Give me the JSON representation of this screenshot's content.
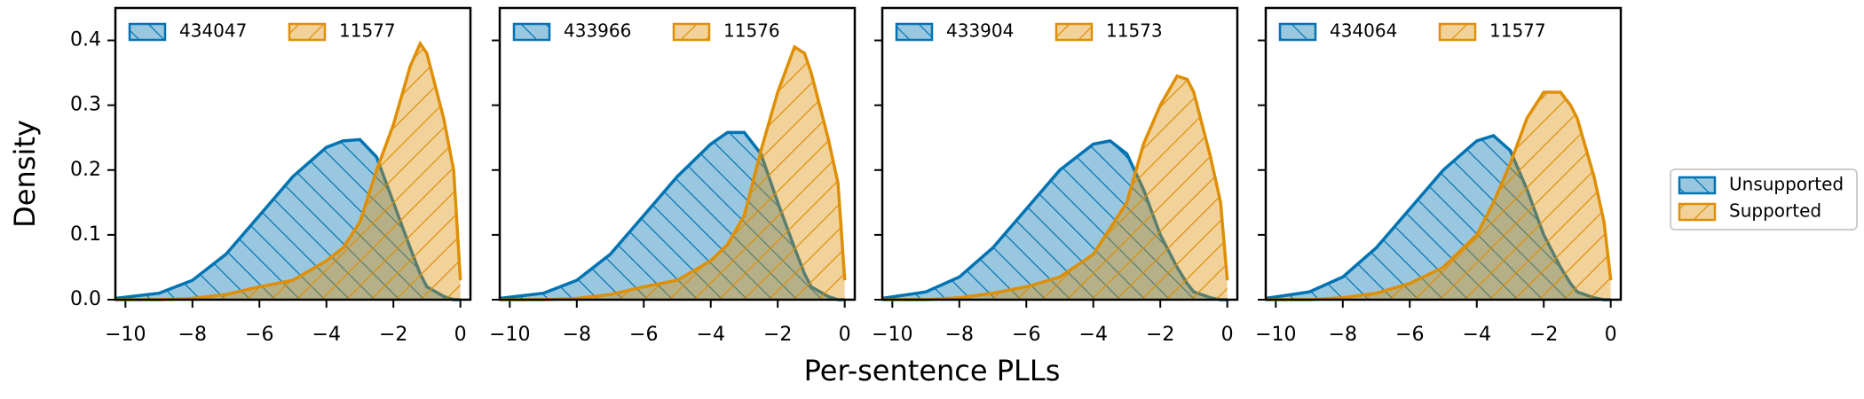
{
  "figure": {
    "xlabel": "Per-sentence PLLs",
    "ylabel": "Density",
    "ylim": [
      0,
      0.45
    ],
    "yticks": [
      {
        "value": 0,
        "label": "0.0"
      },
      0.1,
      0.2,
      0.3,
      0.4
    ],
    "legend": [
      {
        "name": "Unsupported",
        "color": "#0173b2"
      },
      {
        "name": "Supported",
        "color": "#de8f05"
      }
    ]
  },
  "chart_data": [
    {
      "type": "area",
      "xlim": [
        -10.3,
        0.3
      ],
      "xticks": [
        {
          "value": -10,
          "label": "−10"
        },
        {
          "value": -8,
          "label": "−8"
        },
        {
          "value": -6,
          "label": "−6"
        },
        {
          "value": -4,
          "label": "−4"
        },
        {
          "value": -2,
          "label": "−2"
        },
        0
      ],
      "x": [
        -10.3,
        -9,
        -8,
        -7,
        -6,
        -5,
        -4,
        -3.5,
        -3,
        -2.5,
        -2,
        -1.5,
        -1.2,
        -1,
        -0.5,
        -0.2,
        0
      ],
      "series": [
        {
          "name": "434047",
          "color": "#0173b2",
          "values": [
            0.002,
            0.01,
            0.03,
            0.07,
            0.13,
            0.19,
            0.235,
            0.245,
            0.247,
            0.22,
            0.15,
            0.08,
            0.04,
            0.02,
            0.005,
            0.0,
            0.0
          ]
        },
        {
          "name": "11577",
          "color": "#de8f05",
          "values": [
            0.0,
            0.0,
            0.002,
            0.008,
            0.02,
            0.03,
            0.06,
            0.08,
            0.12,
            0.2,
            0.27,
            0.36,
            0.395,
            0.38,
            0.28,
            0.2,
            0.03
          ]
        }
      ]
    },
    {
      "type": "area",
      "xlim": [
        -10.3,
        0.3
      ],
      "xticks": [
        {
          "value": -10,
          "label": "−10"
        },
        {
          "value": -8,
          "label": "−8"
        },
        {
          "value": -6,
          "label": "−6"
        },
        {
          "value": -4,
          "label": "−4"
        },
        {
          "value": -2,
          "label": "−2"
        },
        0
      ],
      "x": [
        -10.3,
        -9,
        -8,
        -7,
        -6,
        -5,
        -4,
        -3.5,
        -3,
        -2.5,
        -2,
        -1.5,
        -1.2,
        -1,
        -0.5,
        -0.2,
        0
      ],
      "series": [
        {
          "name": "433966",
          "color": "#0173b2",
          "values": [
            0.002,
            0.01,
            0.03,
            0.07,
            0.13,
            0.19,
            0.24,
            0.258,
            0.258,
            0.225,
            0.15,
            0.08,
            0.04,
            0.02,
            0.005,
            0.0,
            0.0
          ]
        },
        {
          "name": "11576",
          "color": "#de8f05",
          "values": [
            0.0,
            0.0,
            0.002,
            0.008,
            0.02,
            0.03,
            0.06,
            0.085,
            0.13,
            0.23,
            0.32,
            0.39,
            0.38,
            0.35,
            0.25,
            0.18,
            0.03
          ]
        }
      ]
    },
    {
      "type": "area",
      "xlim": [
        -10.3,
        0.3
      ],
      "xticks": [
        {
          "value": -10,
          "label": "−10"
        },
        {
          "value": -8,
          "label": "−8"
        },
        {
          "value": -6,
          "label": "−6"
        },
        {
          "value": -4,
          "label": "−4"
        },
        {
          "value": -2,
          "label": "−2"
        },
        0
      ],
      "x": [
        -10.3,
        -9,
        -8,
        -7,
        -6,
        -5,
        -4,
        -3.5,
        -3,
        -2.5,
        -2,
        -1.5,
        -1.2,
        -1,
        -0.5,
        -0.2,
        0
      ],
      "series": [
        {
          "name": "433904",
          "color": "#0173b2",
          "values": [
            0.002,
            0.012,
            0.035,
            0.08,
            0.14,
            0.2,
            0.24,
            0.245,
            0.225,
            0.17,
            0.1,
            0.05,
            0.025,
            0.012,
            0.003,
            0.0,
            0.0
          ]
        },
        {
          "name": "11573",
          "color": "#de8f05",
          "values": [
            0.0,
            0.0,
            0.003,
            0.01,
            0.02,
            0.035,
            0.07,
            0.11,
            0.15,
            0.24,
            0.3,
            0.345,
            0.34,
            0.32,
            0.22,
            0.15,
            0.03
          ]
        }
      ]
    },
    {
      "type": "area",
      "xlim": [
        -10.3,
        0.3
      ],
      "xticks": [
        {
          "value": -10,
          "label": "−10"
        },
        {
          "value": -8,
          "label": "−8"
        },
        {
          "value": -6,
          "label": "−6"
        },
        {
          "value": -4,
          "label": "−4"
        },
        {
          "value": -2,
          "label": "−2"
        },
        0
      ],
      "x": [
        -10.3,
        -9,
        -8,
        -7,
        -6,
        -5,
        -4,
        -3.5,
        -3,
        -2.5,
        -2,
        -1.5,
        -1.2,
        -1,
        -0.5,
        -0.2,
        0
      ],
      "series": [
        {
          "name": "434064",
          "color": "#0173b2",
          "values": [
            0.002,
            0.012,
            0.035,
            0.08,
            0.14,
            0.2,
            0.245,
            0.253,
            0.23,
            0.17,
            0.1,
            0.05,
            0.025,
            0.012,
            0.003,
            0.0,
            0.0
          ]
        },
        {
          "name": "11577",
          "color": "#de8f05",
          "values": [
            0.0,
            0.0,
            0.003,
            0.01,
            0.025,
            0.05,
            0.1,
            0.15,
            0.21,
            0.28,
            0.32,
            0.32,
            0.3,
            0.28,
            0.19,
            0.12,
            0.03
          ]
        }
      ]
    }
  ]
}
